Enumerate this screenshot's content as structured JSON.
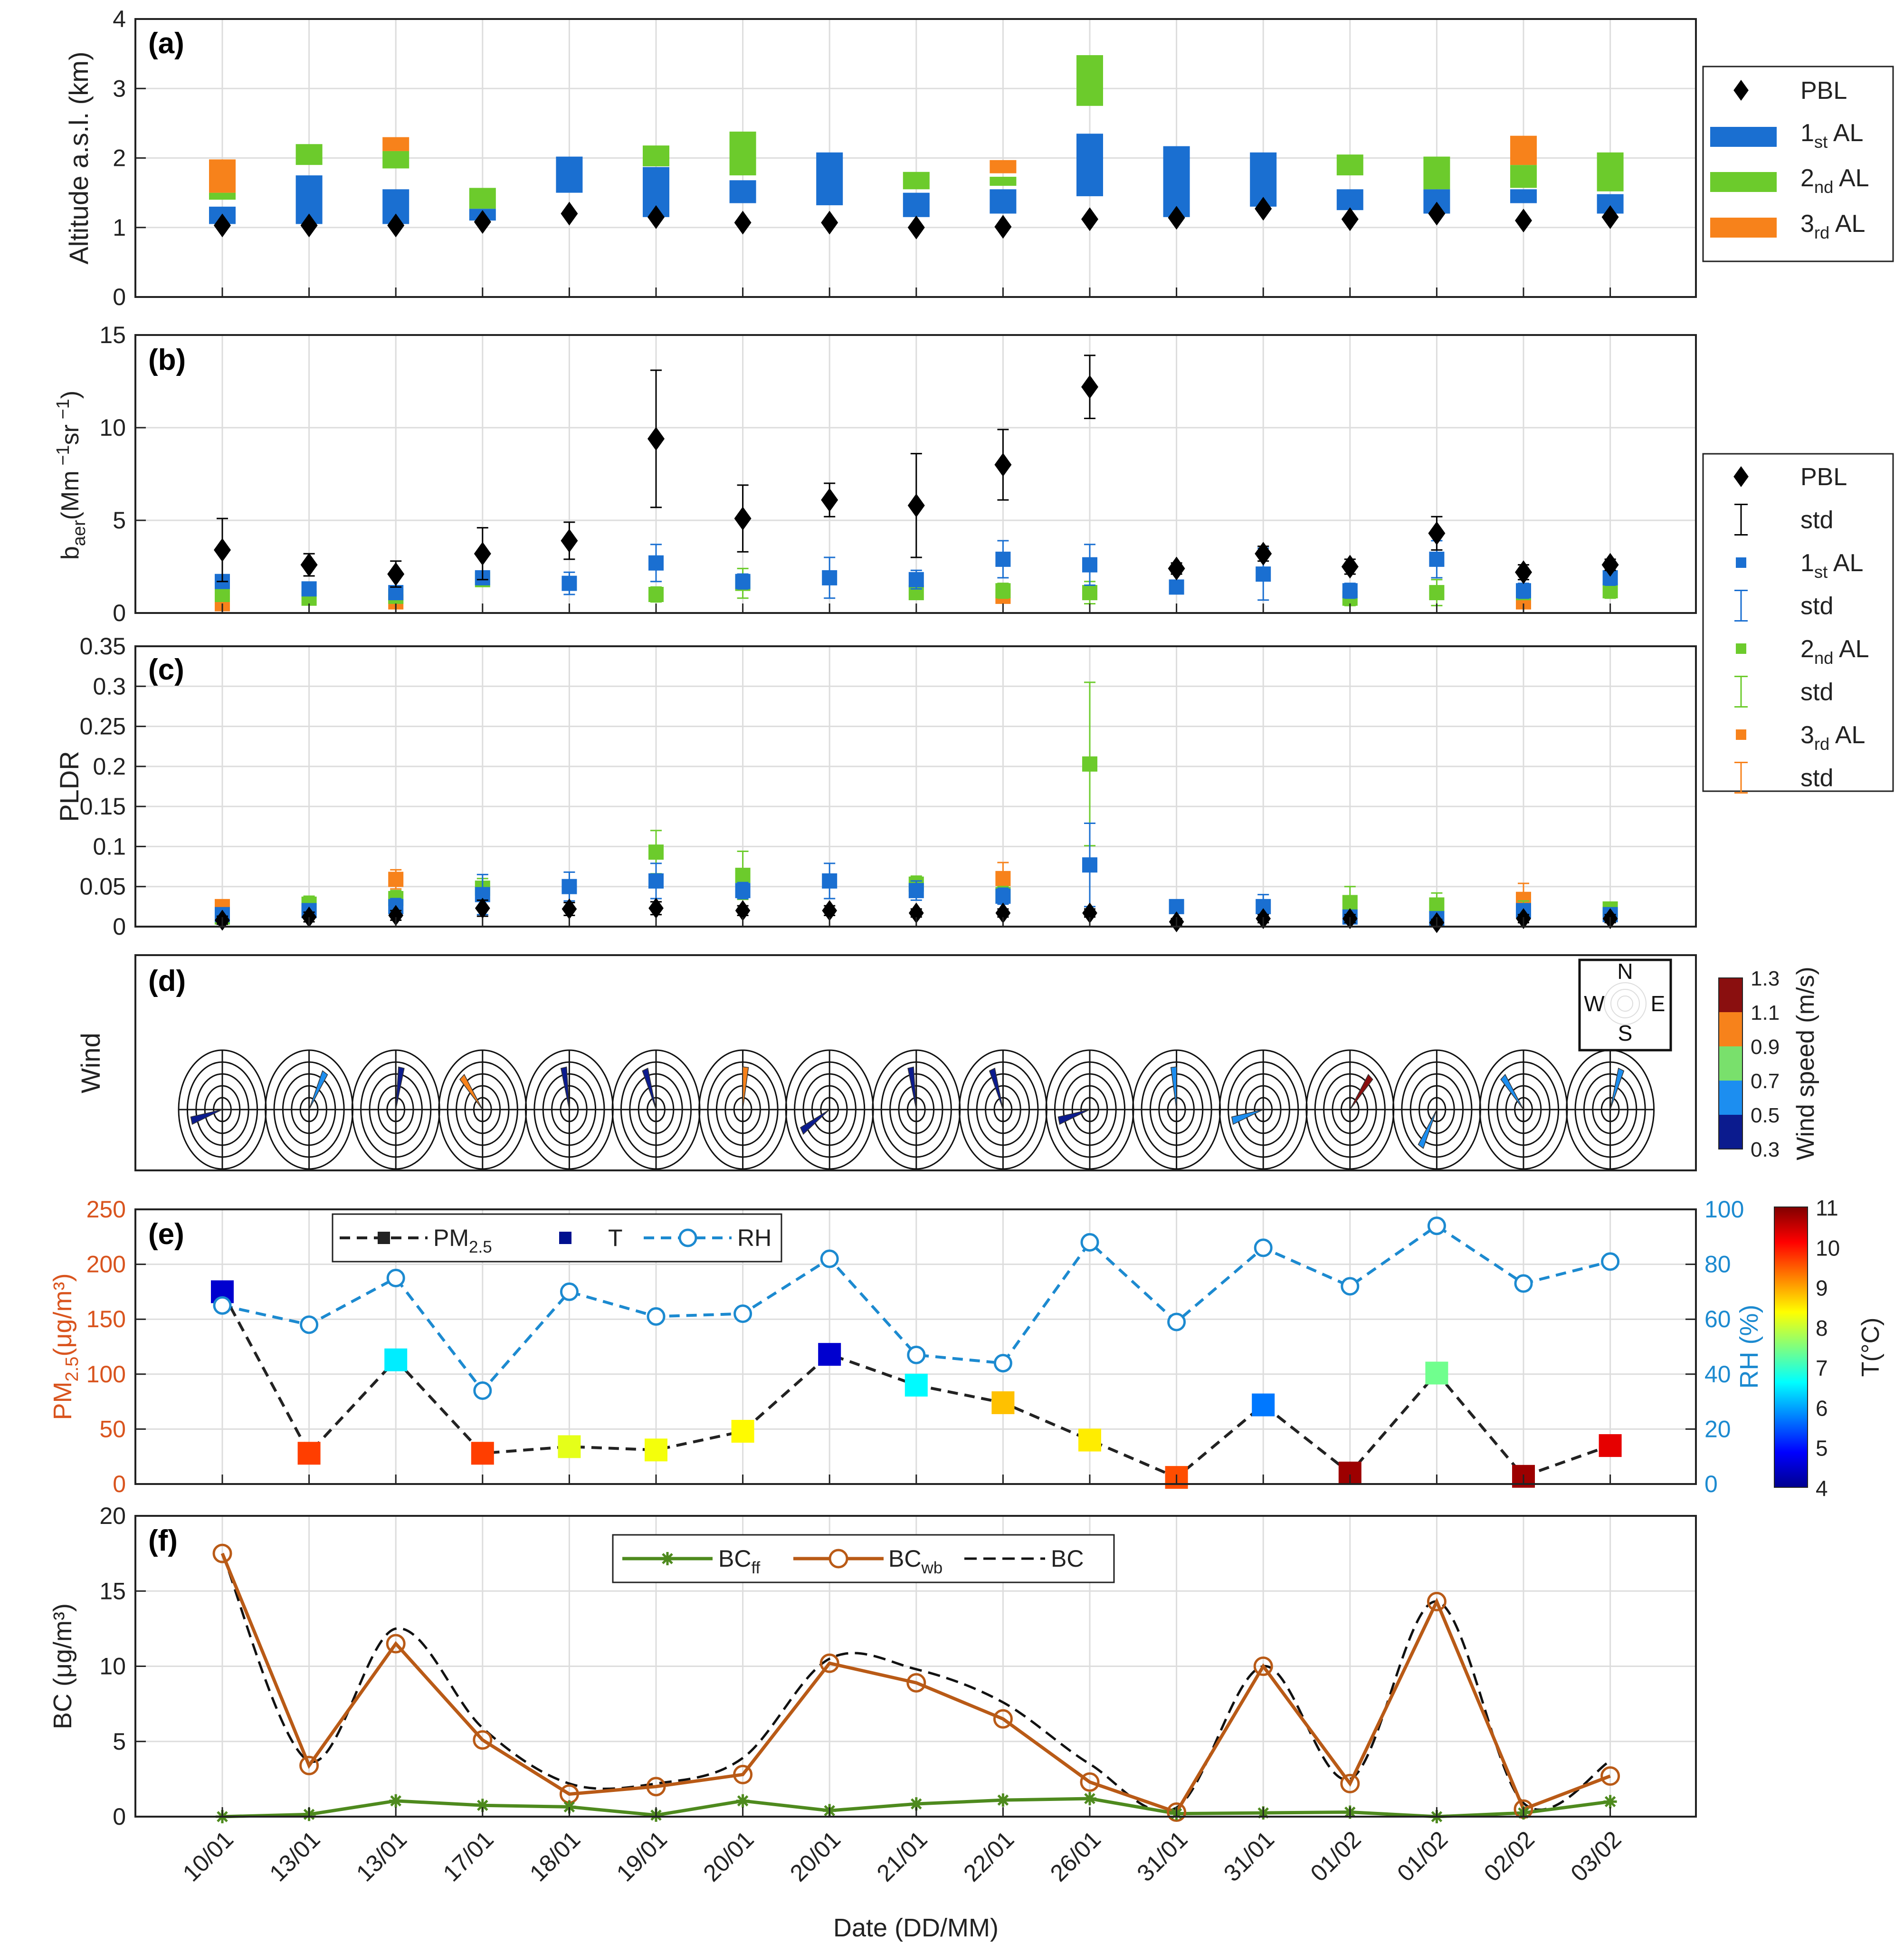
{
  "colors": {
    "al1": "#1a6fd1",
    "al2": "#6ccb2c",
    "al3": "#f7821b",
    "pbl": "#000000",
    "pm": "#d9541e",
    "rh": "#1c8ad0",
    "bcff": "#4e8a1e",
    "bcwb": "#b95a16",
    "bc": "#000000",
    "grid": "#dddddd",
    "red": "#d9541e",
    "blue": "#1c8ad0"
  },
  "chart_data": {
    "dates": [
      "10/01",
      "13/01",
      "13/01",
      "17/01",
      "18/01",
      "19/01",
      "20/01",
      "20/01",
      "21/01",
      "22/01",
      "26/01",
      "31/01",
      "31/01",
      "01/02",
      "01/02",
      "02/02",
      "03/02"
    ],
    "xlabel": "Date (DD/MM)",
    "panels": [
      {
        "id": "a",
        "type": "layer-bars",
        "label": "(a)",
        "ylabel": "Altitude a.s.l. (km)",
        "ylim": [
          0,
          4
        ],
        "yticks": [
          0,
          1,
          2,
          3,
          4
        ],
        "legend": [
          {
            "kind": "diamond",
            "name": "PBL"
          },
          {
            "kind": "rect",
            "color": "al1",
            "name": "1",
            "sub": "st",
            "suffix": " AL"
          },
          {
            "kind": "rect",
            "color": "al2",
            "name": "2",
            "sub": "nd",
            "suffix": " AL"
          },
          {
            "kind": "rect",
            "color": "al3",
            "name": "3",
            "sub": "rd",
            "suffix": " AL"
          }
        ],
        "pbl": [
          1.03,
          1.03,
          1.03,
          1.08,
          1.2,
          1.15,
          1.07,
          1.07,
          1.0,
          1.01,
          1.12,
          1.14,
          1.27,
          1.12,
          1.2,
          1.1,
          1.15
        ],
        "al1": [
          [
            1.05,
            1.3
          ],
          [
            1.05,
            1.75
          ],
          [
            1.05,
            1.55
          ],
          [
            1.1,
            1.27
          ],
          [
            1.5,
            2.02
          ],
          [
            1.15,
            1.87
          ],
          [
            1.35,
            1.68
          ],
          [
            1.32,
            2.08
          ],
          [
            1.15,
            1.5
          ],
          [
            1.2,
            1.55
          ],
          [
            1.45,
            2.35
          ],
          [
            1.15,
            2.17
          ],
          [
            1.3,
            2.08
          ],
          [
            1.25,
            1.55
          ],
          [
            1.2,
            1.55
          ],
          [
            1.35,
            1.55
          ],
          [
            1.2,
            1.48
          ]
        ],
        "al2": [
          [
            1.4,
            1.5
          ],
          [
            1.9,
            2.2
          ],
          [
            1.85,
            2.1
          ],
          [
            1.27,
            1.57
          ],
          null,
          [
            1.88,
            2.18
          ],
          [
            1.75,
            2.38
          ],
          null,
          [
            1.55,
            1.8
          ],
          [
            1.6,
            1.73
          ],
          [
            2.75,
            3.48
          ],
          null,
          null,
          [
            1.75,
            2.05
          ],
          [
            1.55,
            2.02
          ],
          [
            1.57,
            1.9
          ],
          [
            1.52,
            2.08
          ]
        ],
        "al3": [
          [
            1.5,
            1.98
          ],
          null,
          [
            2.1,
            2.3
          ],
          null,
          null,
          null,
          null,
          null,
          null,
          [
            1.78,
            1.97
          ],
          null,
          null,
          null,
          null,
          null,
          [
            1.9,
            2.32
          ],
          null
        ]
      },
      {
        "id": "b",
        "type": "errorbar",
        "label": "(b)",
        "ylabel": "b",
        "ylabel_sub": "aer",
        "ylabel_rest": "(Mm",
        "ylim": [
          0,
          15
        ],
        "yticks": [
          0,
          5,
          10,
          15
        ],
        "legend": [
          {
            "kind": "diamond",
            "name": "PBL"
          },
          {
            "kind": "err",
            "color": "pbl",
            "name": "std"
          },
          {
            "kind": "square",
            "color": "al1",
            "name": "1",
            "sub": "st",
            "suffix": " AL"
          },
          {
            "kind": "err",
            "color": "al1",
            "name": "std"
          },
          {
            "kind": "square",
            "color": "al2",
            "name": "2",
            "sub": "nd",
            "suffix": " AL"
          },
          {
            "kind": "err",
            "color": "al2",
            "name": "std"
          },
          {
            "kind": "square",
            "color": "al3",
            "name": "3",
            "sub": "rd",
            "suffix": " AL"
          },
          {
            "kind": "err",
            "color": "al3",
            "name": "std"
          }
        ],
        "pbl": [
          3.4,
          2.6,
          2.1,
          3.2,
          3.9,
          9.4,
          5.1,
          6.1,
          5.8,
          8.0,
          12.2,
          2.4,
          3.2,
          2.5,
          4.3,
          2.2,
          2.6
        ],
        "pbl_err": [
          1.7,
          0.6,
          0.7,
          1.4,
          1.0,
          3.7,
          1.8,
          0.9,
          2.8,
          1.9,
          1.7,
          0.3,
          0.4,
          0.4,
          0.9,
          0.4,
          0.3
        ],
        "al1": [
          1.7,
          1.3,
          1.1,
          1.9,
          1.6,
          2.7,
          1.7,
          1.9,
          1.8,
          2.9,
          2.6,
          1.4,
          2.1,
          1.2,
          2.9,
          1.2,
          1.9
        ],
        "al1_err": [
          0.3,
          0.3,
          0.3,
          0.3,
          0.6,
          1.0,
          0.4,
          1.1,
          0.5,
          1.0,
          1.1,
          0.3,
          1.4,
          0.4,
          1.0,
          0.4,
          0.4
        ],
        "al2": [
          1.0,
          0.8,
          0.9,
          1.8,
          null,
          1.0,
          1.6,
          null,
          1.1,
          1.2,
          1.1,
          null,
          null,
          0.8,
          1.1,
          1.1,
          1.2
        ],
        "al2_err": [
          0.3,
          0.2,
          0.3,
          0.3,
          null,
          0.4,
          0.8,
          null,
          0.3,
          0.4,
          0.6,
          null,
          null,
          0.4,
          0.7,
          0.3,
          0.4
        ],
        "al3": [
          0.5,
          null,
          0.6,
          null,
          null,
          null,
          null,
          null,
          null,
          0.9,
          null,
          null,
          null,
          null,
          null,
          0.6,
          null
        ],
        "al3_err": [
          0.2,
          null,
          0.2,
          null,
          null,
          null,
          null,
          null,
          null,
          0.3,
          null,
          null,
          null,
          null,
          null,
          0.3,
          null
        ]
      },
      {
        "id": "c",
        "type": "errorbar",
        "label": "(c)",
        "ylabel": "PLDR",
        "ylim": [
          0,
          0.35
        ],
        "yticks": [
          0,
          0.05,
          0.1,
          0.15,
          0.2,
          0.25,
          0.3,
          0.35
        ],
        "pbl": [
          0.008,
          0.012,
          0.014,
          0.023,
          0.022,
          0.023,
          0.02,
          0.02,
          0.017,
          0.017,
          0.017,
          0.006,
          0.01,
          0.01,
          0.005,
          0.01,
          0.01
        ],
        "pbl_err": [
          0.005,
          0.006,
          0.006,
          0.01,
          0.008,
          0.008,
          0.006,
          0.006,
          0.005,
          0.005,
          0.005,
          0.004,
          0.005,
          0.005,
          0.004,
          0.005,
          0.005
        ],
        "al1": [
          0.015,
          0.02,
          0.025,
          0.04,
          0.05,
          0.057,
          0.045,
          0.057,
          0.045,
          0.038,
          0.077,
          0.025,
          0.025,
          0.012,
          0.01,
          0.02,
          0.015
        ],
        "al1_err": [
          0.008,
          0.008,
          0.01,
          0.025,
          0.018,
          0.022,
          0.01,
          0.022,
          0.012,
          0.01,
          0.052,
          0.005,
          0.015,
          0.005,
          0.005,
          0.008,
          0.006
        ],
        "al2": [
          0.012,
          0.028,
          0.035,
          0.048,
          null,
          0.093,
          0.064,
          null,
          0.053,
          0.04,
          0.203,
          null,
          null,
          0.03,
          0.027,
          0.02,
          0.022
        ],
        "al2_err": [
          0.006,
          0.01,
          0.01,
          0.012,
          null,
          0.027,
          0.03,
          null,
          0.01,
          0.01,
          0.102,
          null,
          null,
          0.02,
          0.015,
          0.012,
          0.008
        ],
        "al3": [
          0.025,
          null,
          0.059,
          null,
          null,
          null,
          null,
          null,
          null,
          0.06,
          null,
          null,
          null,
          null,
          null,
          0.034,
          null
        ],
        "al3_err": [
          0.008,
          null,
          0.012,
          null,
          null,
          null,
          null,
          null,
          null,
          0.02,
          null,
          null,
          null,
          null,
          null,
          0.02,
          null
        ]
      },
      {
        "id": "d",
        "type": "wind-rose-row",
        "label": "(d)",
        "ylabel": "Wind",
        "compass": [
          "N",
          "S",
          "W",
          "E"
        ],
        "colorbar": {
          "label": "Wind speed (m/s)",
          "ticks": [
            "1.3",
            "1.1",
            "0.9",
            "0.7",
            "0.5",
            "0.3"
          ],
          "colors": [
            "#8a0f0f",
            "#f7821b",
            "#79e06c",
            "#1c8ef0",
            "#0b1b8e"
          ]
        },
        "dir_deg": [
          255,
          30,
          10,
          320,
          350,
          340,
          5,
          240,
          350,
          340,
          255,
          355,
          255,
          40,
          210,
          320,
          20
        ],
        "speed": [
          0.3,
          0.7,
          0.3,
          1.0,
          0.3,
          0.5,
          1.0,
          0.5,
          0.5,
          0.5,
          0.3,
          0.7,
          0.7,
          1.2,
          0.7,
          0.7,
          0.7
        ]
      },
      {
        "id": "e",
        "type": "line-dual",
        "label": "(e)",
        "ylabel_left": "PM",
        "ylabel_left_sub": "2.5",
        "ylabel_left_units": "(μg/m³)",
        "ylabel_right": "RH (%)",
        "ylim_left": [
          0,
          250
        ],
        "yticks_left": [
          0,
          50,
          100,
          150,
          200,
          250
        ],
        "ylim_right": [
          0,
          100
        ],
        "yticks_right": [
          0,
          20,
          40,
          60,
          80,
          100
        ],
        "legend": [
          {
            "kind": "pm",
            "name": "PM",
            "sub": "2.5"
          },
          {
            "kind": "t",
            "name": "T"
          },
          {
            "kind": "rh",
            "name": "RH"
          }
        ],
        "colorbar": {
          "label": "T(°C)",
          "ticks": [
            "11",
            "10",
            "9",
            "8",
            "7",
            "6",
            "5",
            "4"
          ],
          "min": 4,
          "max": 11
        },
        "pm25": [
          175,
          28,
          113,
          28,
          34,
          31,
          48,
          118,
          90,
          74,
          40,
          6,
          72,
          10,
          101,
          7,
          35
        ],
        "rh": [
          65,
          58,
          75,
          34,
          70,
          61,
          62,
          82,
          47,
          44,
          88,
          59,
          86,
          72,
          94,
          73,
          81
        ],
        "t": [
          4.5,
          9.7,
          6.5,
          9.7,
          8.2,
          8.3,
          8.4,
          4.5,
          6.6,
          8.8,
          8.5,
          9.6,
          5.7,
          10.8,
          7.4,
          10.8,
          10.3
        ]
      },
      {
        "id": "f",
        "type": "line",
        "label": "(f)",
        "ylabel": "BC (μg/m³)",
        "ylim": [
          0,
          20
        ],
        "yticks": [
          0,
          5,
          10,
          15,
          20
        ],
        "legend": [
          {
            "kind": "ff",
            "name": "BC",
            "sub": "ff"
          },
          {
            "kind": "wb",
            "name": "BC",
            "sub": "wb"
          },
          {
            "kind": "bc",
            "name": "BC"
          }
        ],
        "bc_ff": [
          0.0,
          0.15,
          1.05,
          0.75,
          0.65,
          0.1,
          1.05,
          0.4,
          0.85,
          1.1,
          1.2,
          0.2,
          0.25,
          0.3,
          0.0,
          0.25,
          1.0
        ],
        "bc_wb": [
          17.5,
          3.4,
          11.5,
          5.1,
          1.5,
          2.0,
          2.8,
          10.2,
          8.9,
          6.5,
          2.3,
          0.3,
          10.0,
          2.2,
          14.3,
          0.5,
          2.7
        ],
        "bc": [
          17.5,
          3.7,
          12.5,
          5.9,
          2.2,
          2.2,
          3.9,
          10.5,
          9.8,
          7.6,
          3.5,
          0.6,
          10.0,
          2.5,
          14.3,
          0.9,
          3.7
        ]
      }
    ]
  }
}
